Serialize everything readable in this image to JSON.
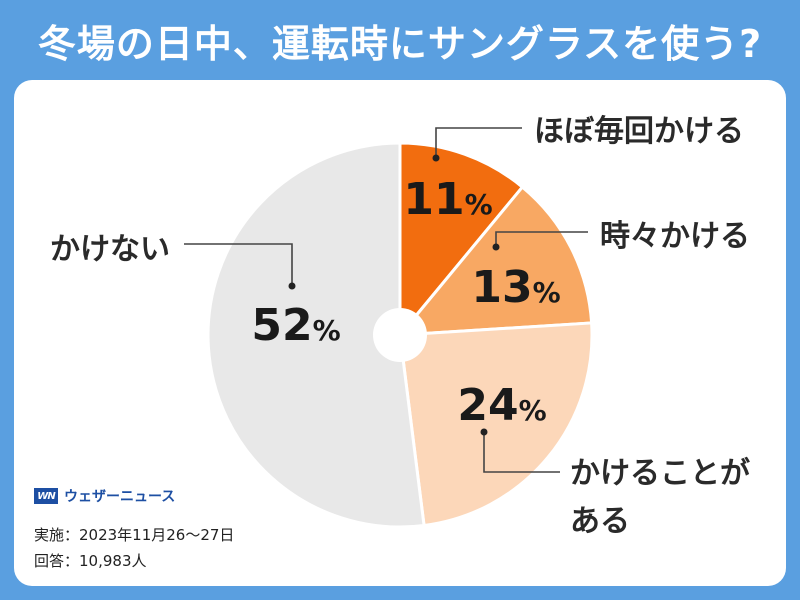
{
  "header": {
    "title": "冬場の日中、運転時にサングラスを使う?"
  },
  "chart_data": {
    "type": "pie",
    "categories": [
      "ほぼ毎回かける",
      "時々かける",
      "かけることがある",
      "かけない"
    ],
    "values": [
      11,
      13,
      24,
      52
    ],
    "value_labels": [
      "11",
      "13",
      "24",
      "52"
    ],
    "percent_sign": "%",
    "category_lines": [
      [
        "ほぼ毎回かける"
      ],
      [
        "時々かける"
      ],
      [
        "かけることが",
        "ある"
      ],
      [
        "かけない"
      ]
    ],
    "colors": [
      "#f26d0f",
      "#f8a863",
      "#fcd7b9",
      "#e8e8e8"
    ],
    "title": "冬場の日中、運転時にサングラスを使う?"
  },
  "footer": {
    "logo_mark": "WN",
    "logo_text": "ウェザーニュース",
    "survey_date": "実施：2023年11月26～27日",
    "respondents": "回答：10,983人"
  }
}
